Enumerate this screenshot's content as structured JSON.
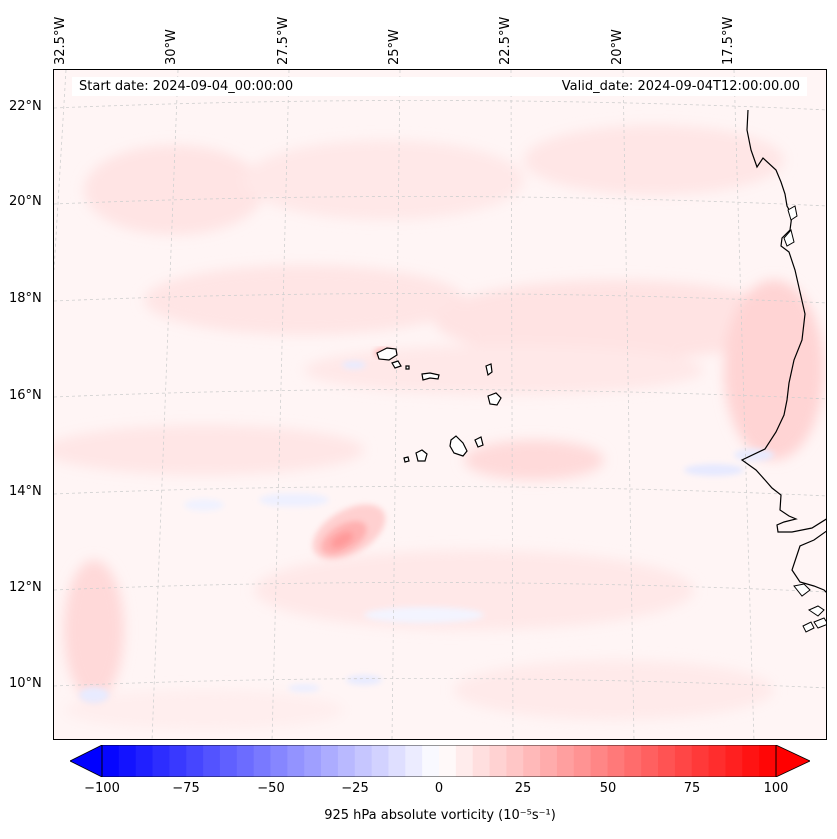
{
  "map": {
    "start_date": "Start date: 2024-09-04_00:00:00",
    "valid_date": "Valid_date: 2024-09-04T12:00:00.00",
    "variable": "925 hPa absolute vorticity (10⁻⁵s⁻¹)",
    "longitude_labels": [
      "32.5°W",
      "30°W",
      "27.5°W",
      "25°W",
      "22.5°W",
      "20°W",
      "17.5°W"
    ],
    "latitude_labels": [
      "22°N",
      "20°N",
      "18°N",
      "16°N",
      "14°N",
      "12°N",
      "10°N"
    ],
    "extent": {
      "lon_min": -33.0,
      "lon_max": -15.5,
      "lat_min": 9.0,
      "lat_max": 22.8
    },
    "features": [
      "Cape Verde Islands",
      "West African coastline (Mauritania, Senegal, Gambia, Guinea-Bissau)"
    ]
  },
  "colorbar": {
    "min": -100,
    "max": 100,
    "ticks": [
      "−100",
      "−75",
      "−50",
      "−25",
      "0",
      "25",
      "50",
      "75",
      "100"
    ],
    "tick_values": [
      -100,
      -75,
      -50,
      -25,
      0,
      25,
      50,
      75,
      100
    ],
    "colormap": "bwr",
    "low_color": "#0000ff",
    "mid_color": "#ffffff",
    "high_color": "#ff0000"
  }
}
